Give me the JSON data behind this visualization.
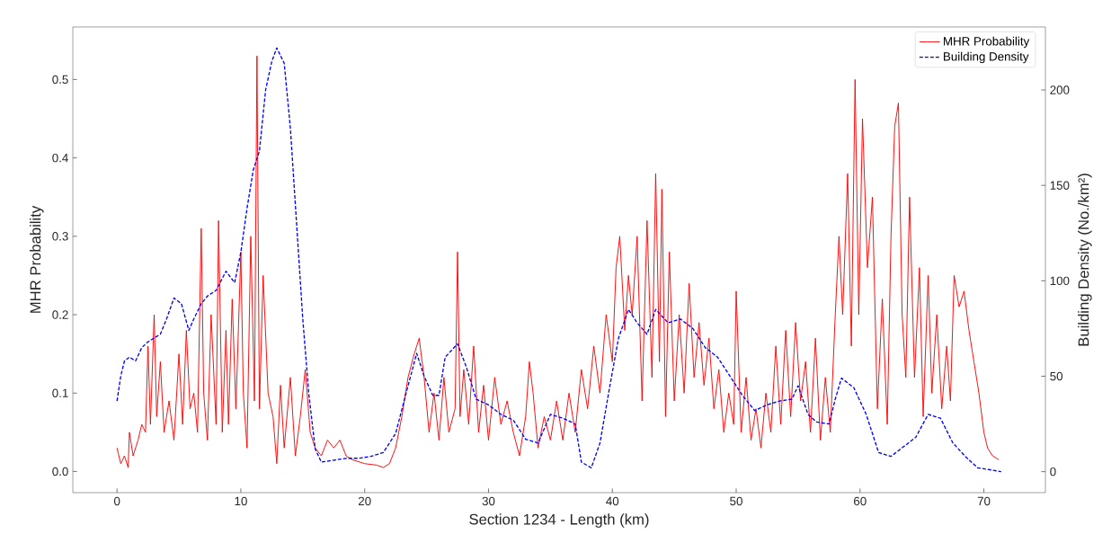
{
  "chart_data": {
    "type": "line",
    "xlabel": "Section 1234 - Length (km)",
    "ylabel": "MHR Probability",
    "y2label": "Building Density (No./km²)",
    "xlim": [
      -3.57,
      74.97
    ],
    "xticks": [
      0,
      10,
      20,
      30,
      40,
      50,
      60,
      70
    ],
    "ylim": [
      -0.027,
      0.567
    ],
    "yticks": [
      {
        "value": 0,
        "label": "0.0"
      },
      {
        "value": 0.1,
        "label": "0.1"
      },
      {
        "value": 0.2,
        "label": "0.2"
      },
      {
        "value": 0.3,
        "label": "0.3"
      },
      {
        "value": 0.4,
        "label": "0.4"
      },
      {
        "value": 0.5,
        "label": "0.5"
      }
    ],
    "y2lim": [
      -11,
      233
    ],
    "y2ticks": [
      0,
      50,
      100,
      150,
      200
    ],
    "legend": "top right",
    "marker": "none",
    "grid": false,
    "series": [
      {
        "name": "MHR Probability",
        "color": "#ff0000",
        "line_style": "solid",
        "x": [
          0.0,
          0.3,
          0.6,
          0.9,
          1.0,
          1.3,
          1.7,
          2.0,
          2.3,
          2.5,
          2.7,
          3.0,
          3.2,
          3.5,
          3.8,
          4.2,
          4.6,
          5.0,
          5.3,
          5.6,
          5.9,
          6.2,
          6.5,
          6.8,
          7.0,
          7.3,
          7.6,
          8.0,
          8.2,
          8.5,
          8.8,
          9.0,
          9.3,
          9.6,
          10.0,
          10.2,
          10.5,
          10.8,
          11.1,
          11.3,
          11.5,
          11.8,
          12.2,
          12.6,
          12.9,
          13.2,
          13.5,
          14.0,
          14.4,
          14.8,
          15.2,
          15.6,
          16.0,
          16.5,
          17.0,
          17.5,
          18.0,
          18.5,
          19.0,
          20.0,
          21.0,
          21.5,
          22.0,
          22.5,
          23.0,
          23.5,
          24.0,
          24.4,
          24.8,
          25.2,
          25.6,
          26.0,
          26.4,
          26.8,
          27.3,
          27.5,
          27.7,
          28.0,
          28.4,
          28.8,
          29.2,
          29.6,
          30.0,
          30.5,
          31.0,
          31.5,
          32.0,
          32.5,
          33.0,
          33.3,
          33.6,
          34.0,
          34.5,
          35.0,
          35.5,
          36.0,
          36.5,
          37.0,
          37.5,
          38.0,
          38.5,
          39.0,
          39.5,
          40.0,
          40.3,
          40.6,
          41.0,
          41.3,
          41.6,
          42.0,
          42.4,
          42.8,
          43.2,
          43.5,
          43.8,
          44.0,
          44.3,
          44.6,
          45.0,
          45.4,
          45.8,
          46.2,
          46.6,
          47.0,
          47.4,
          47.8,
          48.2,
          48.6,
          49.0,
          49.4,
          49.8,
          50.0,
          50.4,
          50.8,
          51.2,
          51.6,
          52.0,
          52.4,
          52.8,
          53.2,
          53.6,
          54.0,
          54.4,
          54.8,
          55.2,
          55.6,
          56.0,
          56.4,
          56.8,
          57.2,
          57.6,
          58.0,
          58.3,
          58.6,
          59.0,
          59.3,
          59.6,
          59.9,
          60.2,
          60.6,
          61.0,
          61.4,
          61.8,
          62.2,
          62.5,
          62.8,
          63.1,
          63.4,
          63.7,
          64.0,
          64.4,
          64.8,
          65.1,
          65.5,
          65.8,
          66.2,
          66.6,
          67.0,
          67.3,
          67.6,
          68.0,
          68.4,
          68.8,
          69.2,
          69.6,
          70.0,
          70.3,
          70.7,
          71.2
        ],
        "values": [
          0.03,
          0.01,
          0.02,
          0.005,
          0.05,
          0.02,
          0.04,
          0.06,
          0.05,
          0.16,
          0.06,
          0.2,
          0.07,
          0.14,
          0.05,
          0.09,
          0.04,
          0.15,
          0.06,
          0.18,
          0.08,
          0.1,
          0.05,
          0.31,
          0.1,
          0.04,
          0.2,
          0.06,
          0.32,
          0.05,
          0.18,
          0.06,
          0.22,
          0.08,
          0.28,
          0.1,
          0.03,
          0.3,
          0.09,
          0.53,
          0.08,
          0.25,
          0.1,
          0.07,
          0.01,
          0.11,
          0.03,
          0.12,
          0.02,
          0.07,
          0.13,
          0.05,
          0.03,
          0.02,
          0.04,
          0.03,
          0.04,
          0.02,
          0.015,
          0.01,
          0.008,
          0.005,
          0.01,
          0.03,
          0.07,
          0.12,
          0.15,
          0.17,
          0.12,
          0.05,
          0.1,
          0.04,
          0.12,
          0.05,
          0.08,
          0.28,
          0.07,
          0.13,
          0.06,
          0.16,
          0.05,
          0.11,
          0.04,
          0.12,
          0.06,
          0.09,
          0.05,
          0.02,
          0.07,
          0.14,
          0.1,
          0.03,
          0.07,
          0.04,
          0.09,
          0.04,
          0.1,
          0.05,
          0.13,
          0.08,
          0.16,
          0.1,
          0.2,
          0.14,
          0.26,
          0.3,
          0.18,
          0.25,
          0.2,
          0.3,
          0.09,
          0.32,
          0.12,
          0.38,
          0.14,
          0.36,
          0.07,
          0.28,
          0.09,
          0.2,
          0.1,
          0.24,
          0.12,
          0.19,
          0.11,
          0.17,
          0.08,
          0.13,
          0.05,
          0.1,
          0.06,
          0.23,
          0.05,
          0.12,
          0.04,
          0.08,
          0.03,
          0.1,
          0.05,
          0.16,
          0.06,
          0.18,
          0.07,
          0.19,
          0.09,
          0.14,
          0.05,
          0.17,
          0.04,
          0.12,
          0.05,
          0.2,
          0.3,
          0.2,
          0.38,
          0.16,
          0.5,
          0.2,
          0.45,
          0.26,
          0.35,
          0.08,
          0.22,
          0.06,
          0.3,
          0.44,
          0.47,
          0.2,
          0.12,
          0.35,
          0.12,
          0.26,
          0.07,
          0.25,
          0.1,
          0.2,
          0.08,
          0.16,
          0.09,
          0.25,
          0.21,
          0.23,
          0.18,
          0.14,
          0.1,
          0.05,
          0.03,
          0.02,
          0.015
        ]
      },
      {
        "name": "Building Density",
        "color": "#0000ff",
        "line_style": "dashed",
        "axis": "y2",
        "x": [
          0,
          0.3,
          0.6,
          1.0,
          1.5,
          2.0,
          2.5,
          3.0,
          3.5,
          4.0,
          4.6,
          5.2,
          5.8,
          6.2,
          6.8,
          7.3,
          8.0,
          8.8,
          9.5,
          10.0,
          10.5,
          11.0,
          11.5,
          12.0,
          12.5,
          12.9,
          13.5,
          14.0,
          14.5,
          15.0,
          15.5,
          16.0,
          16.5,
          17.5,
          18.5,
          19.5,
          20.5,
          21.5,
          22.5,
          23.5,
          24.2,
          24.8,
          25.5,
          26.0,
          26.5,
          27.5,
          28.2,
          29.0,
          30.0,
          31.0,
          32.0,
          33.0,
          34.0,
          35.0,
          36.0,
          37.0,
          37.5,
          38.3,
          39.0,
          39.8,
          40.5,
          41.3,
          42.0,
          42.8,
          43.5,
          44.5,
          45.5,
          46.5,
          47.5,
          48.5,
          49.5,
          50.5,
          51.5,
          52.5,
          53.5,
          54.5,
          55.0,
          55.8,
          56.5,
          57.5,
          58.0,
          58.5,
          59.5,
          60.5,
          61.5,
          62.5,
          63.5,
          64.5,
          65.5,
          66.5,
          67.5,
          68.5,
          69.5,
          70.5,
          71.4
        ],
        "values": [
          37,
          50,
          58,
          60,
          58,
          65,
          68,
          70,
          72,
          80,
          91,
          88,
          74,
          80,
          88,
          92,
          95,
          105,
          99,
          115,
          138,
          158,
          168,
          200,
          215,
          222,
          214,
          180,
          130,
          80,
          40,
          12,
          5,
          6,
          7,
          7,
          8,
          10,
          20,
          45,
          62,
          50,
          40,
          40,
          60,
          67,
          55,
          38,
          35,
          30,
          27,
          17,
          15,
          30,
          28,
          25,
          5,
          2,
          15,
          45,
          70,
          85,
          78,
          72,
          85,
          78,
          80,
          75,
          65,
          60,
          50,
          40,
          32,
          35,
          37,
          38,
          45,
          30,
          26,
          25,
          38,
          49,
          44,
          30,
          10,
          8,
          13,
          18,
          30,
          28,
          15,
          8,
          2,
          1,
          0
        ]
      }
    ]
  }
}
